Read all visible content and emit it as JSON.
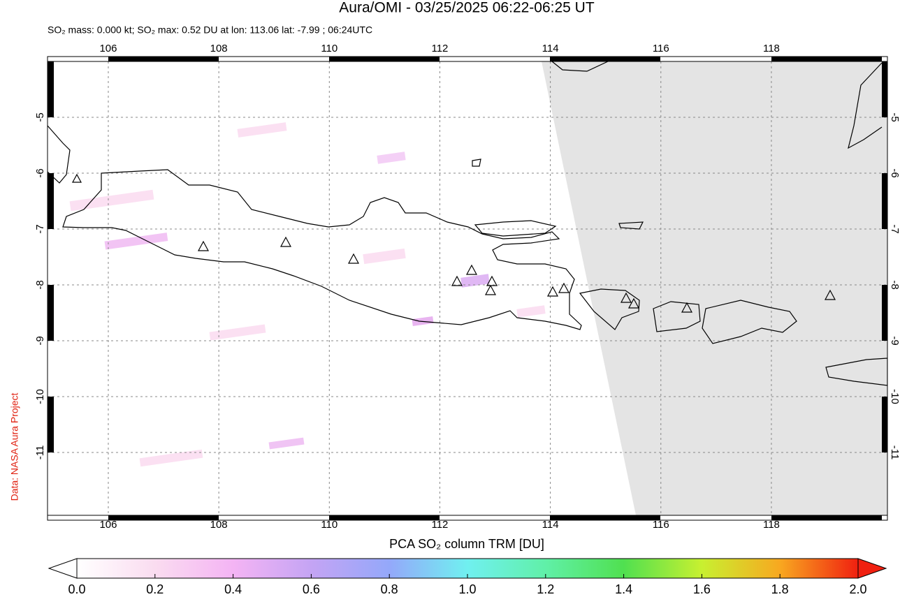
{
  "header": {
    "title": "Aura/OMI - 03/25/2025 06:22-06:25 UT",
    "subtitle": "SO₂ mass: 0.000 kt; SO₂ max: 0.52 DU at lon: 113.06 lat: -7.99 ; 06:24UTC"
  },
  "map": {
    "lon_range": [
      104.9,
      120.1
    ],
    "lat_range": [
      -4,
      -12.125
    ],
    "lon_ticks": [
      106,
      108,
      110,
      112,
      114,
      116,
      118
    ],
    "lat_ticks": [
      -5,
      -6,
      -7,
      -8,
      -9,
      -10,
      -11
    ]
  },
  "colorbar": {
    "label": "PCA SO₂ column TRM [DU]",
    "ticks": [
      {
        "value": 0,
        "label": "0.0"
      },
      {
        "value": 0.2,
        "label": "0.2"
      },
      {
        "value": 0.4,
        "label": "0.4"
      },
      {
        "value": 0.6,
        "label": "0.6"
      },
      {
        "value": 0.8,
        "label": "0.8"
      },
      {
        "value": 1,
        "label": "1.0"
      },
      {
        "value": 1.2,
        "label": "1.2"
      },
      {
        "value": 1.4,
        "label": "1.4"
      },
      {
        "value": 1.6,
        "label": "1.6"
      },
      {
        "value": 1.8,
        "label": "1.8"
      },
      {
        "value": 2,
        "label": "2.0"
      }
    ]
  },
  "credit": "Data: NASA Aura Project"
}
